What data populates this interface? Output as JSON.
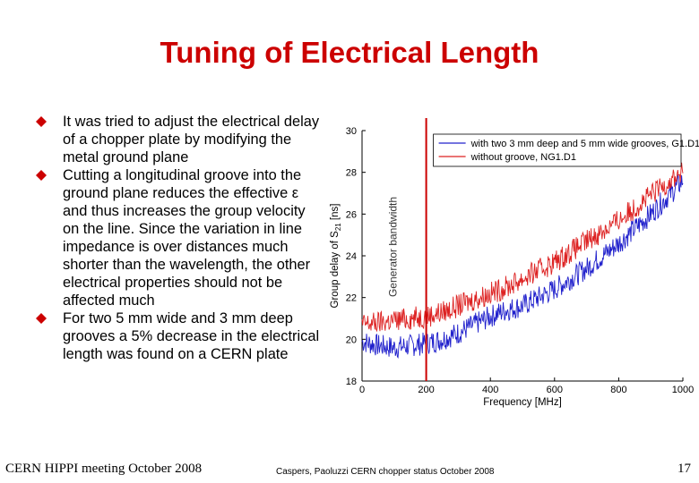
{
  "slide": {
    "title": "Tuning of Electrical Length",
    "bullets": [
      "It was tried to adjust the electrical delay of a chopper plate by modifying the metal ground plane",
      "Cutting a longitudinal groove into the ground plane reduces the effective ε and thus increases the group velocity on the line. Since the variation in line impedance is over distances much shorter than the wavelength, the other electrical properties should not be affected much",
      "For two 5 mm wide and 3 mm deep grooves a 5% decrease in the electrical length was found on a CERN plate"
    ],
    "footer_left": "CERN HIPPI meeting October 2008",
    "footer_mid": "Caspers, Paoluzzi CERN chopper status October 2008",
    "page_number": "17",
    "accent_color": "#cc0000",
    "bullet_icon": "diamond-icon"
  },
  "chart_data": {
    "type": "line",
    "xlabel": "Frequency [MHz]",
    "ylabel_main": "Group delay of S",
    "ylabel_sub": "21",
    "ylabel_unit": " [ns]",
    "xlim": [
      0,
      1000
    ],
    "ylim": [
      18,
      30
    ],
    "xticks": [
      0,
      200,
      400,
      600,
      800,
      1000
    ],
    "yticks": [
      18,
      20,
      22,
      24,
      26,
      28,
      30
    ],
    "grid": false,
    "legend_position": "top-right",
    "annotation": "Generator bandwidth",
    "annotation_x": 200,
    "series": [
      {
        "name": "with two 3 mm deep and 5 mm wide grooves, G1.D1",
        "color": "#2020cc",
        "x": [
          0,
          50,
          100,
          150,
          200,
          250,
          300,
          350,
          400,
          450,
          500,
          550,
          600,
          650,
          700,
          750,
          800,
          850,
          900,
          950,
          1000
        ],
        "y": [
          19.9,
          19.7,
          19.6,
          19.7,
          19.8,
          20.0,
          20.3,
          20.7,
          21.1,
          21.4,
          21.6,
          22.0,
          22.4,
          22.9,
          23.4,
          24.0,
          24.6,
          25.3,
          26.0,
          26.8,
          27.6
        ],
        "noise": 0.55
      },
      {
        "name": "without groove, NG1.D1",
        "color": "#dd2222",
        "x": [
          0,
          50,
          100,
          150,
          200,
          250,
          300,
          350,
          400,
          450,
          500,
          550,
          600,
          650,
          700,
          750,
          800,
          850,
          900,
          950,
          1000
        ],
        "y": [
          20.7,
          20.8,
          20.9,
          21.0,
          21.1,
          21.3,
          21.6,
          21.9,
          22.2,
          22.5,
          22.9,
          23.3,
          23.7,
          24.2,
          24.7,
          25.2,
          25.7,
          26.3,
          26.9,
          27.5,
          28.0
        ],
        "noise": 0.55
      }
    ]
  }
}
